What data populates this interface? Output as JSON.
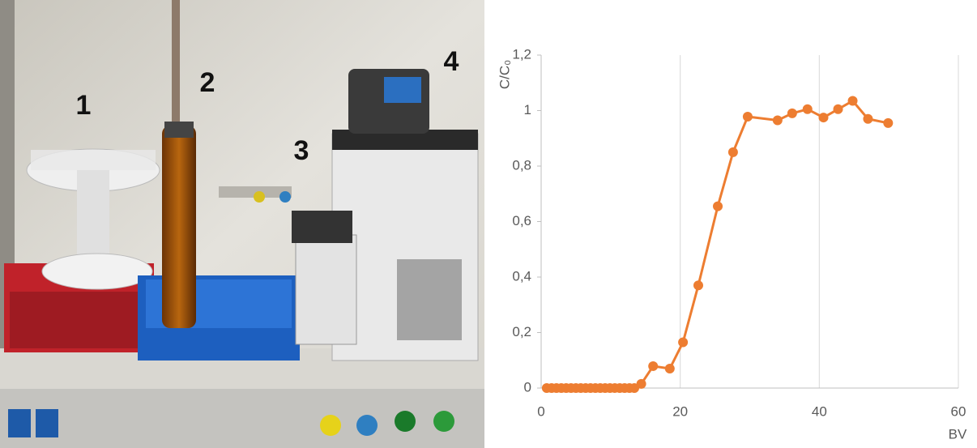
{
  "photo_labels": [
    "1",
    "2",
    "3",
    "4"
  ],
  "chart_data": {
    "type": "line",
    "y_label": "C/C₀",
    "x_label": "BV",
    "color": "#ed7d31",
    "x": [
      0.8,
      1.5,
      2.2,
      2.9,
      3.6,
      4.3,
      5.0,
      5.7,
      6.4,
      7.1,
      7.8,
      8.5,
      9.2,
      9.9,
      10.6,
      11.3,
      12.0,
      12.7,
      13.4,
      14.4,
      16.1,
      18.5,
      20.4,
      22.6,
      25.4,
      27.6,
      29.7,
      34.0,
      36.1,
      38.3,
      40.6,
      42.7,
      44.8,
      47.0,
      49.9
    ],
    "values": [
      0,
      0,
      0,
      0,
      0,
      0,
      0,
      0,
      0,
      0,
      0,
      0,
      0,
      0,
      0,
      0,
      0,
      0,
      0,
      0.015,
      0.079,
      0.07,
      0.165,
      0.37,
      0.655,
      0.85,
      0.978,
      0.965,
      0.99,
      1.005,
      0.975,
      1.005,
      1.035,
      0.97,
      0.955
    ],
    "xlim": [
      0,
      60
    ],
    "ylim": [
      0,
      1.2
    ],
    "xticks": [
      0,
      20,
      40,
      60
    ],
    "yticks": [
      0,
      {
        "value": 0.2,
        "label": "0,2"
      },
      {
        "value": 0.4,
        "label": "0,4"
      },
      {
        "value": 0.6,
        "label": "0,6"
      },
      {
        "value": 0.8,
        "label": "0,8"
      },
      1,
      {
        "value": 1.2,
        "label": "1,2"
      }
    ],
    "grid": true
  }
}
